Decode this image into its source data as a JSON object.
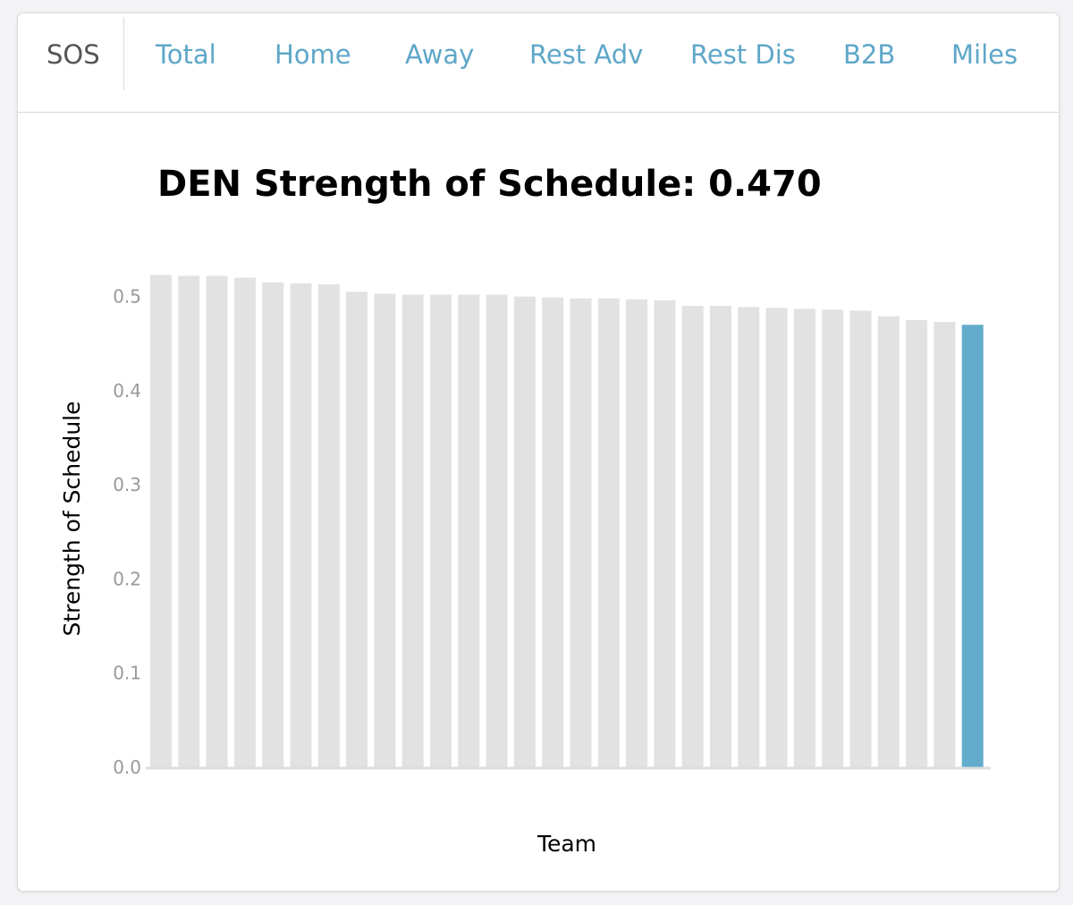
{
  "tabs": [
    {
      "label": "SOS",
      "active": true
    },
    {
      "label": "Total",
      "active": false
    },
    {
      "label": "Home",
      "active": false
    },
    {
      "label": "Away",
      "active": false
    },
    {
      "label": "Rest Adv",
      "active": false
    },
    {
      "label": "Rest Dis",
      "active": false
    },
    {
      "label": "B2B",
      "active": false
    },
    {
      "label": "Miles",
      "active": false
    }
  ],
  "colors": {
    "accent": "#5ea7c9",
    "bar_default": "#e2e2e2",
    "bar_highlight": "#63accb",
    "active_tab": "#555555"
  },
  "chart_data": {
    "type": "bar",
    "title": "DEN Strength of Schedule: 0.470",
    "xlabel": "Team",
    "ylabel": "Strength of Schedule",
    "ylim": [
      0,
      0.53
    ],
    "yticks": [
      "0.0",
      "0.1",
      "0.2",
      "0.3",
      "0.4",
      "0.5"
    ],
    "grid": false,
    "highlight_index": 29,
    "values": [
      0.523,
      0.522,
      0.522,
      0.52,
      0.515,
      0.514,
      0.513,
      0.505,
      0.503,
      0.502,
      0.502,
      0.502,
      0.502,
      0.5,
      0.499,
      0.498,
      0.498,
      0.497,
      0.496,
      0.49,
      0.49,
      0.489,
      0.488,
      0.487,
      0.486,
      0.485,
      0.479,
      0.475,
      0.473,
      0.47
    ]
  }
}
